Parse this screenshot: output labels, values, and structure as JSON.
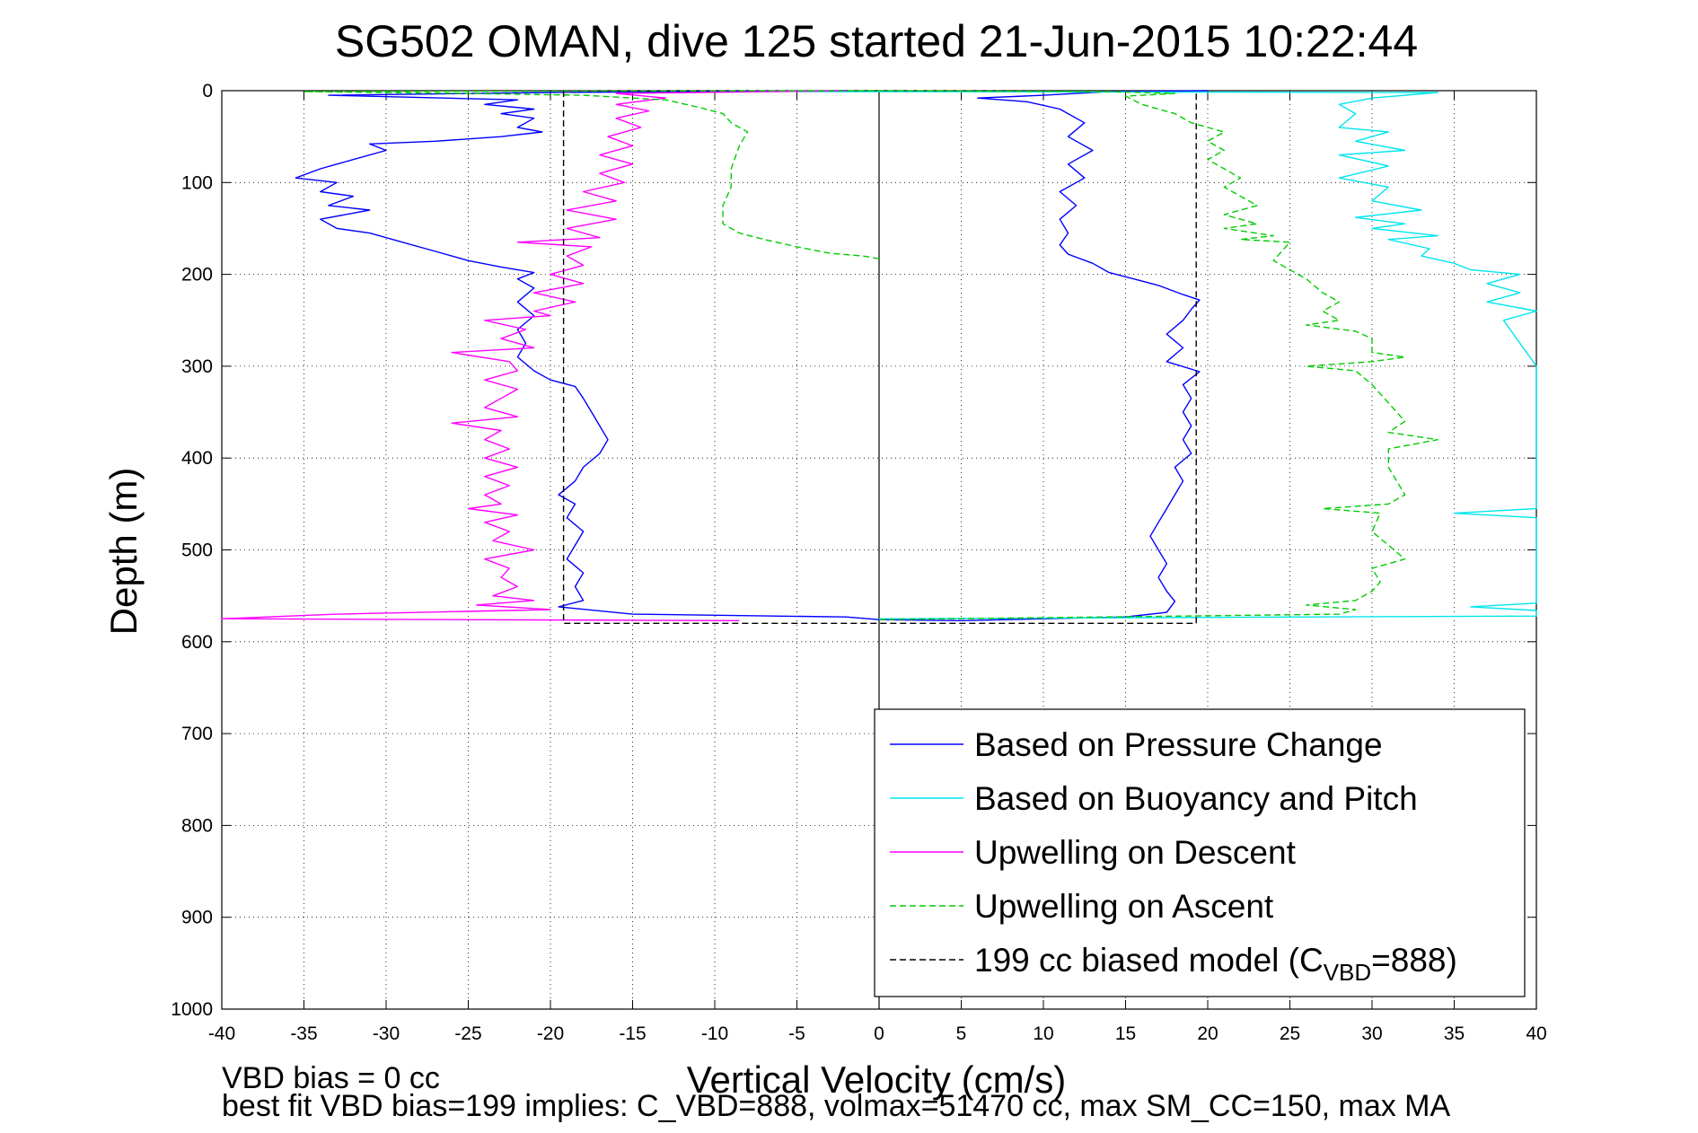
{
  "chart_data": {
    "type": "line",
    "title": "SG502 OMAN, dive 125 started 21-Jun-2015 10:22:44",
    "xlabel": "Vertical Velocity (cm/s)",
    "ylabel": "Depth (m)",
    "xlim": [
      -40,
      40
    ],
    "ylim": [
      0,
      1000
    ],
    "y_reversed": true,
    "grid": true,
    "legend_position": "bottom-right",
    "xticks": [
      -40,
      -35,
      -30,
      -25,
      -20,
      -15,
      -10,
      -5,
      0,
      5,
      10,
      15,
      20,
      25,
      30,
      35,
      40
    ],
    "yticks": [
      0,
      100,
      200,
      300,
      400,
      500,
      600,
      700,
      800,
      900,
      1000
    ],
    "xtick_labels": [
      "-40",
      "-35",
      "-30",
      "-25",
      "-20",
      "-15",
      "-10",
      "-5",
      "0",
      "5",
      "10",
      "15",
      "20",
      "25",
      "30",
      "35",
      "40"
    ],
    "ytick_labels": [
      "0",
      "100",
      "200",
      "300",
      "400",
      "500",
      "600",
      "700",
      "800",
      "900",
      "1000"
    ],
    "series": [
      {
        "name": "Based on Pressure Change",
        "color": "#0000ff",
        "dash": "solid",
        "points": [
          [
            -2,
            0
          ],
          [
            -20,
            2
          ],
          [
            -33.5,
            5
          ],
          [
            -22,
            10
          ],
          [
            -24,
            15
          ],
          [
            -21,
            20
          ],
          [
            -23,
            25
          ],
          [
            -21,
            30
          ],
          [
            -22,
            40
          ],
          [
            -20.5,
            45
          ],
          [
            -23,
            50
          ],
          [
            -27,
            55
          ],
          [
            -31,
            58
          ],
          [
            -30,
            65
          ],
          [
            -32,
            75
          ],
          [
            -34,
            85
          ],
          [
            -35.5,
            95
          ],
          [
            -33,
            100
          ],
          [
            -34,
            110
          ],
          [
            -32,
            115
          ],
          [
            -33.5,
            125
          ],
          [
            -31,
            130
          ],
          [
            -34,
            140
          ],
          [
            -33,
            150
          ],
          [
            -31,
            155
          ],
          [
            -29,
            165
          ],
          [
            -27,
            175
          ],
          [
            -25,
            185
          ],
          [
            -23,
            192
          ],
          [
            -21,
            198
          ],
          [
            -22,
            205
          ],
          [
            -21,
            215
          ],
          [
            -22,
            230
          ],
          [
            -21,
            245
          ],
          [
            -22,
            260
          ],
          [
            -21.5,
            275
          ],
          [
            -22,
            290
          ],
          [
            -21,
            305
          ],
          [
            -20,
            315
          ],
          [
            -18.5,
            322
          ],
          [
            -18,
            335
          ],
          [
            -17.5,
            350
          ],
          [
            -17,
            365
          ],
          [
            -16.5,
            380
          ],
          [
            -17,
            395
          ],
          [
            -18,
            410
          ],
          [
            -18.5,
            425
          ],
          [
            -19.5,
            440
          ],
          [
            -18.5,
            450
          ],
          [
            -19,
            465
          ],
          [
            -18,
            480
          ],
          [
            -18.5,
            495
          ],
          [
            -19,
            510
          ],
          [
            -18,
            525
          ],
          [
            -18.5,
            540
          ],
          [
            -18,
            555
          ],
          [
            -19.5,
            562
          ],
          [
            -15,
            570
          ],
          [
            -2,
            573
          ],
          [
            0,
            576
          ],
          [
            5,
            577
          ],
          [
            15,
            573
          ],
          [
            17.5,
            568
          ],
          [
            18,
            556
          ],
          [
            17.5,
            545
          ],
          [
            17,
            530
          ],
          [
            17.5,
            515
          ],
          [
            17,
            500
          ],
          [
            16.5,
            485
          ],
          [
            17,
            470
          ],
          [
            17.5,
            455
          ],
          [
            18,
            440
          ],
          [
            18.5,
            425
          ],
          [
            18,
            410
          ],
          [
            19,
            395
          ],
          [
            18.5,
            380
          ],
          [
            19,
            365
          ],
          [
            18.5,
            350
          ],
          [
            19,
            335
          ],
          [
            18.5,
            320
          ],
          [
            19.5,
            306
          ],
          [
            17.5,
            295
          ],
          [
            18.5,
            280
          ],
          [
            17.5,
            265
          ],
          [
            18.5,
            250
          ],
          [
            19,
            238
          ],
          [
            19.5,
            228
          ],
          [
            18.5,
            222
          ],
          [
            17,
            212
          ],
          [
            15.5,
            205
          ],
          [
            14,
            198
          ],
          [
            13,
            188
          ],
          [
            11.5,
            178
          ],
          [
            11,
            168
          ],
          [
            11.5,
            155
          ],
          [
            11,
            140
          ],
          [
            12,
            125
          ],
          [
            11,
            110
          ],
          [
            12.5,
            95
          ],
          [
            11.5,
            80
          ],
          [
            13,
            65
          ],
          [
            11.5,
            50
          ],
          [
            12.5,
            35
          ],
          [
            11,
            20
          ],
          [
            9,
            12
          ],
          [
            6,
            8
          ],
          [
            10,
            5
          ],
          [
            12,
            3
          ],
          [
            14,
            1
          ],
          [
            20,
            0
          ]
        ]
      },
      {
        "name": "Based on Buoyancy and Pitch",
        "color": "#00e5ee",
        "dash": "solid",
        "points": [
          [
            -5,
            1
          ],
          [
            34,
            2
          ],
          [
            30,
            8
          ],
          [
            28,
            15
          ],
          [
            29,
            25
          ],
          [
            28,
            40
          ],
          [
            31,
            45
          ],
          [
            29,
            55
          ],
          [
            32,
            65
          ],
          [
            28,
            70
          ],
          [
            31,
            82
          ],
          [
            28,
            95
          ],
          [
            31,
            105
          ],
          [
            30,
            120
          ],
          [
            33,
            130
          ],
          [
            29,
            138
          ],
          [
            32,
            145
          ],
          [
            30,
            150
          ],
          [
            34,
            158
          ],
          [
            31,
            162
          ],
          [
            33.5,
            172
          ],
          [
            33,
            180
          ],
          [
            35,
            188
          ],
          [
            36,
            195
          ],
          [
            39,
            200
          ],
          [
            37,
            210
          ],
          [
            39,
            220
          ],
          [
            37,
            230
          ],
          [
            40,
            240
          ],
          [
            38,
            250
          ],
          [
            40,
            300
          ],
          [
            40,
            330
          ],
          [
            40,
            455
          ],
          [
            35,
            460
          ],
          [
            40,
            465
          ],
          [
            40,
            558
          ],
          [
            36,
            562
          ],
          [
            40,
            566
          ],
          [
            40,
            572
          ],
          [
            0,
            575
          ]
        ]
      },
      {
        "name": "Upwelling on Descent",
        "color": "#ff00ff",
        "dash": "solid",
        "points": [
          [
            -2,
            0
          ],
          [
            -16,
            3
          ],
          [
            -13,
            8
          ],
          [
            -16,
            15
          ],
          [
            -14,
            22
          ],
          [
            -16,
            30
          ],
          [
            -14.5,
            40
          ],
          [
            -16.5,
            50
          ],
          [
            -15,
            60
          ],
          [
            -17,
            70
          ],
          [
            -15,
            80
          ],
          [
            -17,
            90
          ],
          [
            -15.5,
            100
          ],
          [
            -18,
            110
          ],
          [
            -16,
            120
          ],
          [
            -19,
            130
          ],
          [
            -16,
            140
          ],
          [
            -19,
            150
          ],
          [
            -17,
            160
          ],
          [
            -22,
            165
          ],
          [
            -17.5,
            170
          ],
          [
            -19,
            180
          ],
          [
            -18,
            190
          ],
          [
            -20,
            200
          ],
          [
            -18,
            210
          ],
          [
            -21,
            220
          ],
          [
            -18.5,
            230
          ],
          [
            -21,
            240
          ],
          [
            -20,
            245
          ],
          [
            -24,
            250
          ],
          [
            -21.5,
            260
          ],
          [
            -23,
            270
          ],
          [
            -21,
            280
          ],
          [
            -26,
            285
          ],
          [
            -22.5,
            295
          ],
          [
            -22,
            305
          ],
          [
            -24,
            315
          ],
          [
            -22,
            325
          ],
          [
            -23,
            335
          ],
          [
            -24,
            345
          ],
          [
            -22,
            355
          ],
          [
            -26,
            362
          ],
          [
            -23,
            370
          ],
          [
            -24,
            380
          ],
          [
            -22.5,
            390
          ],
          [
            -24,
            400
          ],
          [
            -22,
            410
          ],
          [
            -24,
            420
          ],
          [
            -22.5,
            430
          ],
          [
            -24,
            440
          ],
          [
            -23,
            450
          ],
          [
            -25,
            455
          ],
          [
            -22,
            462
          ],
          [
            -24,
            470
          ],
          [
            -22.5,
            480
          ],
          [
            -23.5,
            490
          ],
          [
            -21,
            500
          ],
          [
            -24,
            510
          ],
          [
            -22.5,
            520
          ],
          [
            -23,
            530
          ],
          [
            -22,
            540
          ],
          [
            -23.5,
            550
          ],
          [
            -21,
            555
          ],
          [
            -24.5,
            560
          ],
          [
            -20,
            565
          ],
          [
            -33,
            570
          ],
          [
            -40,
            575
          ],
          [
            -8.5,
            577
          ]
        ]
      },
      {
        "name": "Upwelling on Ascent",
        "color": "#00cc00",
        "dash": "dashed",
        "points": [
          [
            0,
            183
          ],
          [
            -1,
            180
          ],
          [
            -3,
            177
          ],
          [
            -5,
            170
          ],
          [
            -7,
            162
          ],
          [
            -8.5,
            155
          ],
          [
            -9.5,
            145
          ],
          [
            -9.5,
            125
          ],
          [
            -9,
            105
          ],
          [
            -9,
            85
          ],
          [
            -8.5,
            60
          ],
          [
            -8,
            45
          ],
          [
            -9,
            35
          ],
          [
            -9.5,
            25
          ],
          [
            -11,
            18
          ],
          [
            -13,
            10
          ],
          [
            -18,
            5
          ],
          [
            -25,
            3
          ],
          [
            -35,
            1
          ],
          [
            0,
            0
          ],
          [
            14,
            1
          ],
          [
            18,
            3
          ],
          [
            15,
            6
          ],
          [
            16,
            15
          ],
          [
            18,
            25
          ],
          [
            19,
            35
          ],
          [
            21,
            45
          ],
          [
            20,
            55
          ],
          [
            21,
            65
          ],
          [
            20,
            75
          ],
          [
            21,
            85
          ],
          [
            22,
            95
          ],
          [
            21,
            105
          ],
          [
            22,
            115
          ],
          [
            23,
            125
          ],
          [
            21,
            135
          ],
          [
            23,
            145
          ],
          [
            21,
            150
          ],
          [
            24,
            158
          ],
          [
            22,
            162
          ],
          [
            25,
            165
          ],
          [
            24.5,
            175
          ],
          [
            24,
            185
          ],
          [
            25,
            195
          ],
          [
            26,
            205
          ],
          [
            27,
            220
          ],
          [
            28,
            230
          ],
          [
            27,
            240
          ],
          [
            28,
            250
          ],
          [
            26,
            255
          ],
          [
            29,
            262
          ],
          [
            30,
            270
          ],
          [
            30,
            285
          ],
          [
            32,
            290
          ],
          [
            30,
            295
          ],
          [
            26,
            300
          ],
          [
            29,
            305
          ],
          [
            30,
            320
          ],
          [
            31,
            340
          ],
          [
            32,
            360
          ],
          [
            31,
            372
          ],
          [
            34,
            380
          ],
          [
            31,
            390
          ],
          [
            31,
            410
          ],
          [
            32,
            440
          ],
          [
            31,
            450
          ],
          [
            27,
            455
          ],
          [
            30.5,
            460
          ],
          [
            30,
            480
          ],
          [
            31,
            495
          ],
          [
            32,
            510
          ],
          [
            30,
            520
          ],
          [
            30.5,
            535
          ],
          [
            30,
            545
          ],
          [
            29,
            555
          ],
          [
            26,
            560
          ],
          [
            29,
            565
          ],
          [
            28,
            570
          ],
          [
            0,
            576
          ]
        ]
      },
      {
        "name": "199 cc biased model (C_VBD=888)",
        "legend_label": "199 cc biased model (C",
        "legend_subscript": "VBD",
        "legend_suffix": "=888)",
        "color": "#000000",
        "dash": "dashed",
        "points": [
          [
            -19.2,
            0
          ],
          [
            -19.2,
            580
          ],
          [
            0,
            580
          ],
          [
            19.3,
            580
          ],
          [
            19.3,
            0
          ]
        ]
      }
    ],
    "annotations": {
      "vbd_bias": "VBD bias = 0 cc",
      "best_fit": "best fit VBD bias=199 implies: C_VBD=888, volmax=51470 cc, max SM_CC=150, max MA"
    }
  }
}
